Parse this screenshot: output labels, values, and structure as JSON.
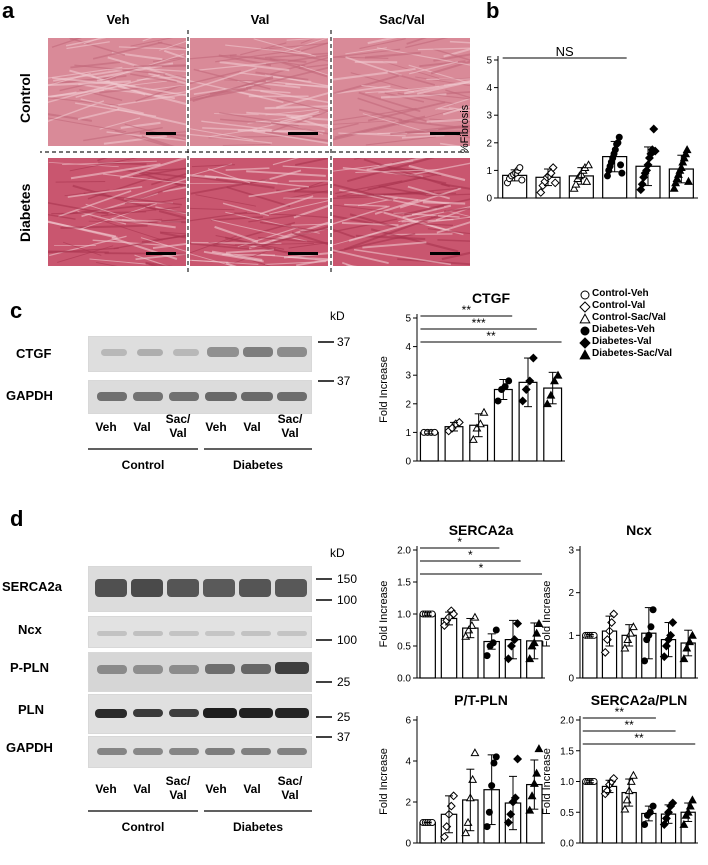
{
  "panels": {
    "a": "a",
    "b": "b",
    "c": "c",
    "d": "d"
  },
  "histology": {
    "columns": [
      "Veh",
      "Val",
      "Sac/Val"
    ],
    "rows": [
      "Control",
      "Diabetes"
    ]
  },
  "blot_c": {
    "labels": [
      "CTGF",
      "GAPDH"
    ],
    "kd_unit": "kD",
    "kd_marks": [
      "37",
      "37"
    ],
    "lanes": [
      "Veh",
      "Val",
      "Sac/\nVal",
      "Veh",
      "Val",
      "Sac/\nVal"
    ],
    "groups": [
      "Control",
      "Diabetes"
    ]
  },
  "blot_d": {
    "labels": [
      "SERCA2a",
      "Ncx",
      "P-PLN",
      "PLN",
      "GAPDH"
    ],
    "kd_unit": "kD",
    "kd_marks": [
      "150",
      "100",
      "100",
      "25",
      "25",
      "37"
    ],
    "lanes": [
      "Veh",
      "Val",
      "Sac/\nVal",
      "Veh",
      "Val",
      "Sac/\nVal"
    ],
    "groups": [
      "Control",
      "Diabetes"
    ]
  },
  "legend": {
    "items": [
      "Control-Veh",
      "Control-Val",
      "Control-Sac/Val",
      "Diabetes-Veh",
      "Diabetes-Val",
      "Diabetes-Sac/Val"
    ],
    "markers": [
      "circle-open",
      "diamond-open",
      "triangle-open",
      "circle-filled",
      "diamond-filled",
      "triangle-filled"
    ]
  },
  "chart_data": [
    {
      "id": "fibrosis",
      "type": "bar",
      "title": "",
      "ylabel": "%Fibrosis",
      "ylim": [
        0,
        5
      ],
      "yticks": [
        0,
        1,
        2,
        3,
        4,
        5
      ],
      "categories": [
        "Control-Veh",
        "Control-Val",
        "Control-Sac/Val",
        "Diabetes-Veh",
        "Diabetes-Val",
        "Diabetes-Sac/Val"
      ],
      "values": [
        0.82,
        0.75,
        0.8,
        1.5,
        1.15,
        1.05
      ],
      "errors": [
        0.2,
        0.3,
        0.3,
        0.55,
        0.7,
        0.5
      ],
      "points": [
        [
          0.55,
          0.7,
          0.8,
          0.85,
          0.9,
          1.0,
          1.1,
          0.65
        ],
        [
          0.2,
          0.45,
          0.6,
          0.75,
          0.8,
          0.9,
          1.1,
          0.55
        ],
        [
          0.35,
          0.5,
          0.7,
          0.8,
          0.85,
          1.0,
          1.1,
          0.6,
          1.2
        ],
        [
          0.8,
          1.0,
          1.15,
          1.3,
          1.45,
          1.6,
          1.75,
          1.95,
          2.0,
          2.2,
          1.2,
          0.9
        ],
        [
          0.3,
          0.5,
          0.75,
          0.9,
          1.0,
          1.2,
          1.45,
          1.6,
          1.75,
          2.5,
          1.7
        ],
        [
          0.35,
          0.55,
          0.7,
          0.85,
          1.0,
          1.1,
          1.3,
          1.45,
          1.6,
          1.75,
          0.6
        ]
      ],
      "annotations": [
        {
          "text": "NS",
          "from": 0,
          "to": 3
        }
      ]
    },
    {
      "id": "ctgf",
      "type": "bar",
      "title": "CTGF",
      "ylabel": "Fold Increase",
      "ylim": [
        0,
        5
      ],
      "yticks": [
        0,
        1,
        2,
        3,
        4,
        5
      ],
      "categories": [
        "Control-Veh",
        "Control-Val",
        "Control-Sac/Val",
        "Diabetes-Veh",
        "Diabetes-Val",
        "Diabetes-Sac/Val"
      ],
      "values": [
        1.0,
        1.2,
        1.25,
        2.5,
        2.75,
        2.55
      ],
      "errors": [
        0.05,
        0.15,
        0.4,
        0.35,
        0.85,
        0.55
      ],
      "points": [
        [
          1.0,
          1.0,
          1.0,
          1.0
        ],
        [
          1.05,
          1.15,
          1.3,
          1.35
        ],
        [
          0.75,
          1.15,
          1.3,
          1.7
        ],
        [
          2.1,
          2.5,
          2.6,
          2.8
        ],
        [
          2.1,
          2.5,
          2.8,
          3.6
        ],
        [
          2.0,
          2.3,
          2.8,
          3.0
        ]
      ],
      "annotations": [
        {
          "text": "**",
          "from": 0,
          "to": 3
        },
        {
          "text": "***",
          "from": 0,
          "to": 4
        },
        {
          "text": "**",
          "from": 0,
          "to": 5
        }
      ]
    },
    {
      "id": "serca2a",
      "type": "bar",
      "title": "SERCA2a",
      "ylabel": "Fold Increase",
      "ylim": [
        0,
        2.0
      ],
      "yticks": [
        0.0,
        0.5,
        1.0,
        1.5,
        2.0
      ],
      "categories": [
        "Control-Veh",
        "Control-Val",
        "Control-Sac/Val",
        "Diabetes-Veh",
        "Diabetes-Val",
        "Diabetes-Sac/Val"
      ],
      "values": [
        1.0,
        0.93,
        0.78,
        0.57,
        0.6,
        0.58
      ],
      "errors": [
        0.02,
        0.1,
        0.15,
        0.12,
        0.3,
        0.28
      ],
      "points": [
        [
          1.0,
          1.0,
          1.0,
          1.0,
          1.0
        ],
        [
          0.82,
          0.9,
          0.95,
          1.05,
          1.0
        ],
        [
          0.65,
          0.75,
          0.82,
          0.95
        ],
        [
          0.35,
          0.5,
          0.55,
          0.75
        ],
        [
          0.3,
          0.5,
          0.6,
          0.85
        ],
        [
          0.3,
          0.5,
          0.55,
          0.7,
          0.85
        ]
      ],
      "annotations": [
        {
          "text": "*",
          "from": 0,
          "to": 3
        },
        {
          "text": "*",
          "from": 0,
          "to": 4
        },
        {
          "text": "*",
          "from": 0,
          "to": 5
        }
      ]
    },
    {
      "id": "ncx",
      "type": "bar",
      "title": "Ncx",
      "ylabel": "Fold Increase",
      "ylim": [
        0,
        3
      ],
      "yticks": [
        0,
        1,
        2,
        3
      ],
      "categories": [
        "Control-Veh",
        "Control-Val",
        "Control-Sac/Val",
        "Diabetes-Veh",
        "Diabetes-Val",
        "Diabetes-Sac/Val"
      ],
      "values": [
        1.0,
        1.1,
        1.0,
        1.05,
        0.9,
        0.82
      ],
      "errors": [
        0.02,
        0.35,
        0.25,
        0.6,
        0.4,
        0.3
      ],
      "points": [
        [
          1.0,
          1.0,
          1.0,
          1.0,
          1.0
        ],
        [
          0.6,
          0.9,
          1.1,
          1.3,
          1.5
        ],
        [
          0.7,
          0.9,
          1.05,
          1.2
        ],
        [
          0.4,
          0.9,
          1.0,
          1.2,
          1.6
        ],
        [
          0.5,
          0.75,
          0.9,
          1.0,
          1.3
        ],
        [
          0.45,
          0.7,
          0.85,
          1.0
        ]
      ],
      "annotations": []
    },
    {
      "id": "ptpln",
      "type": "bar",
      "title": "P/T-PLN",
      "ylabel": "Fold Increase",
      "ylim": [
        0,
        6
      ],
      "yticks": [
        0,
        2,
        4,
        6
      ],
      "categories": [
        "Control-Veh",
        "Control-Val",
        "Control-Sac/Val",
        "Diabetes-Veh",
        "Diabetes-Val",
        "Diabetes-Sac/Val"
      ],
      "values": [
        1.0,
        1.4,
        2.1,
        2.6,
        1.95,
        2.85
      ],
      "errors": [
        0.02,
        0.9,
        1.5,
        1.7,
        1.3,
        1.2
      ],
      "points": [
        [
          1.0,
          1.0,
          1.0,
          1.0,
          1.0
        ],
        [
          0.3,
          0.8,
          1.4,
          1.8,
          2.3
        ],
        [
          0.5,
          1.0,
          2.2,
          3.1,
          4.4
        ],
        [
          0.8,
          1.5,
          2.8,
          3.9,
          4.2
        ],
        [
          1.0,
          1.4,
          2.0,
          2.2,
          4.1
        ],
        [
          1.6,
          2.3,
          2.9,
          3.4,
          4.6
        ]
      ],
      "annotations": []
    },
    {
      "id": "serca2apln",
      "type": "bar",
      "title": "SERCA2a/PLN",
      "ylabel": "Fold Increase",
      "ylim": [
        0,
        2.0
      ],
      "yticks": [
        0.0,
        0.5,
        1.0,
        1.5,
        2.0
      ],
      "categories": [
        "Control-Veh",
        "Control-Val",
        "Control-Sac/Val",
        "Diabetes-Veh",
        "Diabetes-Val",
        "Diabetes-Sac/Val"
      ],
      "values": [
        1.0,
        0.92,
        0.82,
        0.48,
        0.47,
        0.5
      ],
      "errors": [
        0.02,
        0.1,
        0.22,
        0.12,
        0.15,
        0.15
      ],
      "points": [
        [
          1.0,
          1.0,
          1.0,
          1.0,
          1.0
        ],
        [
          0.8,
          0.85,
          0.95,
          1.0,
          1.05
        ],
        [
          0.55,
          0.7,
          0.85,
          1.0,
          1.1
        ],
        [
          0.3,
          0.45,
          0.5,
          0.6
        ],
        [
          0.3,
          0.4,
          0.5,
          0.6,
          0.65
        ],
        [
          0.3,
          0.45,
          0.5,
          0.6,
          0.7
        ]
      ],
      "annotations": [
        {
          "text": "**",
          "from": 0,
          "to": 3
        },
        {
          "text": "**",
          "from": 0,
          "to": 4
        },
        {
          "text": "**",
          "from": 0,
          "to": 5
        }
      ]
    }
  ]
}
